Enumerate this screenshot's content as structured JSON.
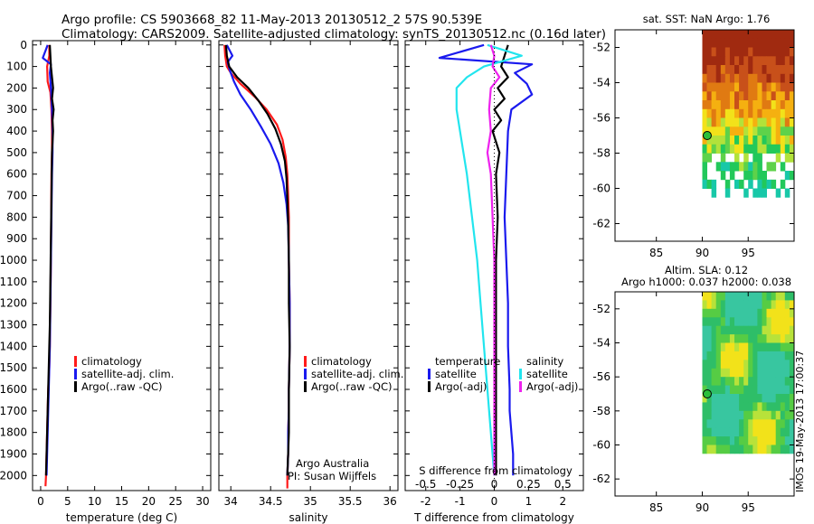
{
  "header": {
    "line1": "Argo profile: CS 5903668_82 11-May-2013 20130512_2 57S 90.539E",
    "line2": "Climatology: CARS2009. Satellite-adjusted climatology: synTS_20130512.nc (0.16d later)"
  },
  "colors": {
    "climatology": "#ff1a1a",
    "satellite_adj": "#1a1aee",
    "argo": "#000000",
    "satellite_salinity": "#22e5ee",
    "argo_salinity_diff": "#ee22ee"
  },
  "stamp": "IMOS 19-May-2013 17:00:37",
  "chart_data": [
    {
      "id": "temperature",
      "type": "line",
      "xlabel": "temperature (deg C)",
      "ylabel": "depth",
      "xlim": [
        -1.5,
        31.5
      ],
      "ylim": [
        2070,
        -20
      ],
      "xticks": [
        0,
        5,
        10,
        15,
        20,
        25,
        30
      ],
      "yticks": [
        0,
        100,
        200,
        300,
        400,
        500,
        600,
        700,
        800,
        900,
        1000,
        1100,
        1200,
        1300,
        1400,
        1500,
        1600,
        1700,
        1800,
        1900,
        2000
      ],
      "legend": [
        "climatology",
        "satellite-adj. clim.",
        "Argo(..raw -QC)"
      ],
      "series": [
        {
          "name": "climatology",
          "color": "#ff1a1a",
          "x": [
            1.6,
            1.6,
            1.2,
            1.3,
            1.8,
            2.0,
            2.1,
            2.1,
            2.0,
            1.95,
            1.9,
            1.8,
            1.7,
            1.6,
            1.4,
            1.3,
            1.2,
            1.1,
            1.0,
            0.9
          ],
          "y": [
            0,
            50,
            100,
            170,
            220,
            300,
            400,
            500,
            600,
            800,
            1000,
            1200,
            1400,
            1500,
            1600,
            1700,
            1800,
            1900,
            2000,
            2050
          ]
        },
        {
          "name": "satellite-adj. clim.",
          "color": "#1a1aee",
          "x": [
            1.3,
            0.4,
            1.9,
            1.7,
            1.9,
            2.1,
            2.2,
            2.2,
            2.1,
            2.0,
            1.9,
            1.8,
            1.7,
            1.6,
            1.5,
            1.4,
            1.3,
            1.2,
            1.1
          ],
          "y": [
            0,
            60,
            90,
            130,
            200,
            300,
            400,
            500,
            600,
            800,
            1000,
            1200,
            1400,
            1500,
            1600,
            1700,
            1800,
            1900,
            2000
          ]
        },
        {
          "name": "Argo(..raw -QC)",
          "color": "#000000",
          "x": [
            1.7,
            1.8,
            1.9,
            2.1,
            2.3,
            2.1,
            2.4,
            2.2,
            2.3,
            2.1,
            2.0,
            1.9,
            1.8,
            1.7,
            1.5,
            1.3,
            1.2,
            1.1,
            1.0
          ],
          "y": [
            0,
            50,
            100,
            150,
            200,
            250,
            300,
            350,
            400,
            500,
            700,
            900,
            1100,
            1300,
            1500,
            1700,
            1800,
            1900,
            2000
          ]
        }
      ]
    },
    {
      "id": "salinity",
      "type": "line",
      "xlabel": "salinity",
      "ylabel": "depth",
      "xlim": [
        33.85,
        36.1
      ],
      "ylim": [
        2070,
        -20
      ],
      "xticks": [
        34,
        34.5,
        35,
        35.5,
        36
      ],
      "legend": [
        "climatology",
        "satellite-adj. clim.",
        "Argo(..raw -QC)"
      ],
      "annotation": [
        "Argo Australia",
        "PI: Susan Wijffels"
      ],
      "series": [
        {
          "name": "climatology",
          "color": "#ff1a1a",
          "x": [
            33.92,
            33.93,
            33.95,
            34.0,
            34.12,
            34.3,
            34.45,
            34.58,
            34.65,
            34.69,
            34.71,
            34.72,
            34.73,
            34.73,
            34.74,
            34.74,
            34.73,
            34.73,
            34.72,
            34.72,
            34.71,
            34.71
          ],
          "y": [
            0,
            50,
            100,
            130,
            180,
            240,
            300,
            370,
            440,
            520,
            600,
            700,
            800,
            1000,
            1200,
            1400,
            1600,
            1700,
            1800,
            1900,
            2000,
            2060
          ]
        },
        {
          "name": "satellite-adj. clim.",
          "color": "#1a1aee",
          "x": [
            33.95,
            34.02,
            33.96,
            33.99,
            34.04,
            34.12,
            34.25,
            34.38,
            34.5,
            34.6,
            34.66,
            34.7,
            34.72,
            34.73,
            34.74,
            34.74,
            34.73,
            34.73,
            34.72,
            34.72,
            34.71
          ],
          "y": [
            0,
            50,
            80,
            120,
            170,
            230,
            300,
            380,
            460,
            550,
            640,
            740,
            840,
            1000,
            1200,
            1400,
            1600,
            1700,
            1800,
            1900,
            2000
          ]
        },
        {
          "name": "Argo(..raw -QC)",
          "color": "#000000",
          "x": [
            33.94,
            33.95,
            33.98,
            34.08,
            34.22,
            34.35,
            34.46,
            34.56,
            34.63,
            34.68,
            34.7,
            34.71,
            34.72,
            34.73,
            34.73,
            34.74,
            34.73,
            34.73,
            34.72,
            34.71
          ],
          "y": [
            0,
            50,
            100,
            150,
            200,
            260,
            320,
            390,
            460,
            540,
            620,
            720,
            820,
            1000,
            1200,
            1400,
            1600,
            1800,
            1900,
            2000
          ]
        }
      ]
    },
    {
      "id": "difference",
      "type": "line",
      "xlabel": "T difference from climatology",
      "x2label": "S difference from climatology",
      "ylabel": "depth",
      "xlim": [
        -2.6,
        2.6
      ],
      "ylim": [
        2070,
        -20
      ],
      "xticks": [
        -2,
        -1,
        0,
        1,
        2
      ],
      "x2ticks_labels": [
        "-0.5",
        "-0.25",
        "0",
        "0.25",
        "0.5"
      ],
      "legend_temperature_title": "temperature",
      "legend_salinity_title": "salinity",
      "legend_temperature": [
        "satellite",
        "Argo(-adj)"
      ],
      "legend_salinity": [
        "satellite",
        "Argo(-adj)"
      ],
      "series": [
        {
          "name": "temperature satellite",
          "color": "#1a1aee",
          "x": [
            -0.3,
            -1.6,
            1.1,
            0.6,
            0.95,
            1.1,
            0.5,
            0.4,
            0.35,
            0.3,
            0.35,
            0.4,
            0.4,
            0.45,
            0.45,
            0.5,
            0.55,
            0.55
          ],
          "y": [
            0,
            60,
            90,
            130,
            180,
            230,
            300,
            400,
            600,
            800,
            1000,
            1200,
            1400,
            1600,
            1700,
            1800,
            1900,
            2000
          ]
        },
        {
          "name": "temperature Argo(-adj)",
          "color": "#000000",
          "x": [
            0.4,
            0.3,
            0.2,
            0.4,
            0.1,
            0.3,
            0.0,
            0.2,
            -0.05,
            0.15,
            0.05,
            0.1,
            0.05,
            0.05,
            0.05,
            0.05,
            0.05,
            0.05
          ],
          "y": [
            0,
            50,
            100,
            150,
            200,
            250,
            300,
            350,
            400,
            500,
            600,
            800,
            1000,
            1200,
            1400,
            1600,
            1800,
            2000
          ]
        },
        {
          "name": "salinity satellite",
          "color": "#22e5ee",
          "x": [
            -0.2,
            0.8,
            -0.3,
            -0.8,
            -1.1,
            -1.1,
            -1.0,
            -0.9,
            -0.8,
            -0.65,
            -0.5,
            -0.4,
            -0.3,
            -0.2,
            -0.1,
            0.0
          ],
          "y": [
            0,
            50,
            100,
            150,
            200,
            300,
            400,
            500,
            600,
            800,
            1000,
            1200,
            1400,
            1600,
            1800,
            2000
          ]
        },
        {
          "name": "salinity Argo(-adj)",
          "color": "#ee22ee",
          "x": [
            -0.1,
            0.0,
            -0.05,
            0.15,
            -0.1,
            -0.15,
            -0.1,
            -0.2,
            -0.1,
            -0.05,
            0.0,
            0.0,
            0.0,
            0.0,
            0.0
          ],
          "y": [
            0,
            50,
            100,
            150,
            200,
            300,
            400,
            500,
            600,
            800,
            1000,
            1200,
            1500,
            1800,
            2000
          ]
        }
      ]
    },
    {
      "id": "sst_map",
      "type": "heatmap",
      "title": "sat. SST: NaN Argo: 1.76",
      "xlim": [
        80.5,
        100
      ],
      "ylim": [
        -63,
        -51
      ],
      "xticks": [
        85,
        90,
        95
      ],
      "yticks": [
        -52,
        -54,
        -56,
        -58,
        -60,
        -62
      ],
      "data_extent": {
        "lon": [
          90,
          100
        ],
        "lat": [
          -60,
          -51
        ]
      },
      "marker": {
        "lon": 90.54,
        "lat": -57
      }
    },
    {
      "id": "sla_map",
      "type": "heatmap",
      "title_lines": [
        "Altim. SLA: 0.12",
        "Argo h1000: 0.037 h2000: 0.038"
      ],
      "xlim": [
        80.5,
        100
      ],
      "ylim": [
        -63,
        -51
      ],
      "xticks": [
        85,
        90,
        95
      ],
      "yticks": [
        -52,
        -54,
        -56,
        -58,
        -60,
        -62
      ],
      "data_extent": {
        "lon": [
          90,
          100
        ],
        "lat": [
          -60,
          -51
        ]
      },
      "marker": {
        "lon": 90.54,
        "lat": -57
      }
    }
  ]
}
